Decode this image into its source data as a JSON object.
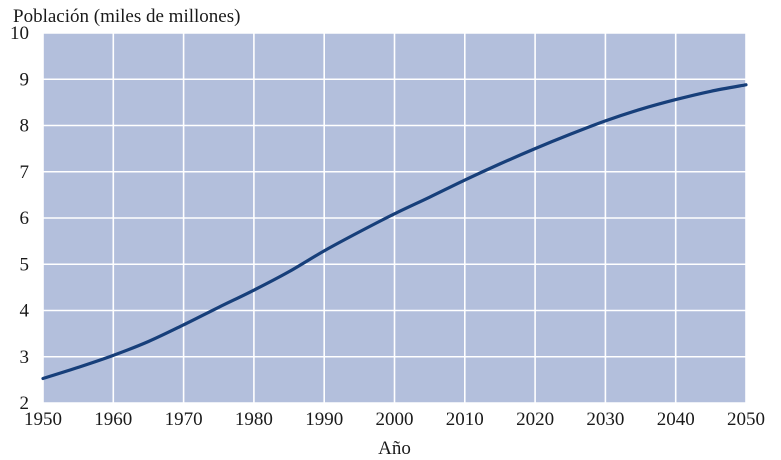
{
  "chart_data": {
    "type": "line",
    "ylabel": "Población (miles de millones)",
    "xlabel": "Año",
    "xlim": [
      1950,
      2050
    ],
    "ylim": [
      2,
      10
    ],
    "xticks": [
      1950,
      1960,
      1970,
      1980,
      1990,
      2000,
      2010,
      2020,
      2030,
      2040,
      2050
    ],
    "yticks": [
      2,
      3,
      4,
      5,
      6,
      7,
      8,
      9,
      10
    ],
    "grid": true,
    "colors": {
      "plot_background": "#b3bfdc",
      "line": "#173f7a",
      "grid": "#ffffff"
    },
    "series": [
      {
        "x": [
          1950,
          1955,
          1960,
          1965,
          1970,
          1975,
          1980,
          1985,
          1990,
          1995,
          2000,
          2005,
          2010,
          2015,
          2020,
          2025,
          2030,
          2035,
          2040,
          2045,
          2050
        ],
        "y": [
          2.53,
          2.77,
          3.03,
          3.33,
          3.69,
          4.07,
          4.44,
          4.84,
          5.29,
          5.7,
          6.09,
          6.45,
          6.82,
          7.17,
          7.5,
          7.81,
          8.1,
          8.35,
          8.56,
          8.74,
          8.88
        ]
      }
    ]
  }
}
